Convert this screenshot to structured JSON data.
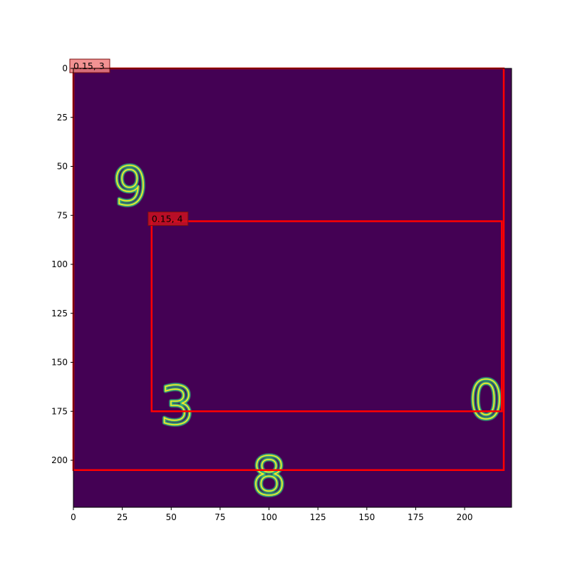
{
  "plot": {
    "x_ticks": [
      "0",
      "25",
      "50",
      "75",
      "100",
      "125",
      "150",
      "175",
      "200"
    ],
    "y_ticks": [
      "0",
      "25",
      "50",
      "75",
      "100",
      "125",
      "150",
      "175",
      "200"
    ],
    "xlim": [
      0,
      224
    ],
    "ylim": [
      224,
      0
    ]
  },
  "image": {
    "background_color": "#440154",
    "digit_color": "#35b779",
    "digits": [
      {
        "label": "9",
        "x": 29,
        "y": 60
      },
      {
        "label": "3",
        "x": 53,
        "y": 172
      },
      {
        "label": "0",
        "x": 211,
        "y": 169
      },
      {
        "label": "8",
        "x": 100,
        "y": 208
      }
    ]
  },
  "boxes": [
    {
      "label": "0.15, 3",
      "x0": 0,
      "y0": 0,
      "x1": 220,
      "y1": 205,
      "label_bg": "#f08080"
    },
    {
      "label": "0.15, 4",
      "x0": 40,
      "y0": 78,
      "x1": 219,
      "y1": 175,
      "label_bg": "#cc1020"
    }
  ],
  "colors": {
    "box_edge": "#ff0000"
  }
}
